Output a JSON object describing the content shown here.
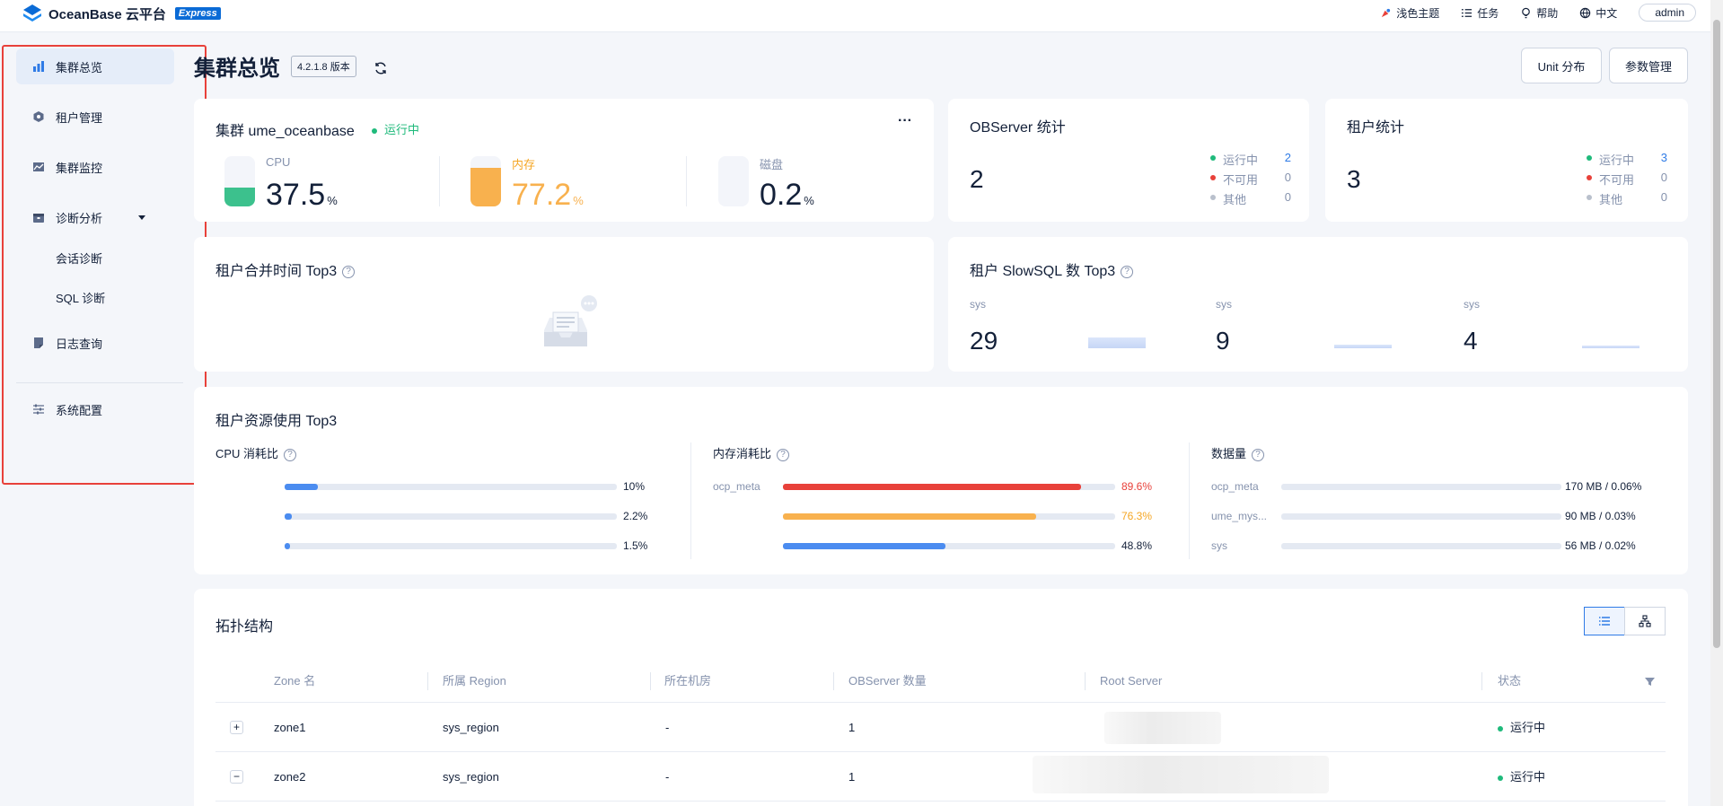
{
  "brand": {
    "name": "OceanBase 云平台",
    "badge": "Express"
  },
  "topbar": {
    "theme": "浅色主题",
    "tasks": "任务",
    "help": "帮助",
    "lang": "中文",
    "user": "admin"
  },
  "sidebar": {
    "items": [
      {
        "label": "集群总览"
      },
      {
        "label": "租户管理"
      },
      {
        "label": "集群监控"
      },
      {
        "label": "诊断分析"
      },
      {
        "label": "会话诊断"
      },
      {
        "label": "SQL 诊断"
      },
      {
        "label": "日志查询"
      },
      {
        "label": "系统配置"
      }
    ]
  },
  "header": {
    "title": "集群总览",
    "version": "4.2.1.8 版本",
    "unit_btn": "Unit 分布",
    "param_btn": "参数管理"
  },
  "cluster": {
    "title": "集群 ume_oceanbase",
    "status": "运行中",
    "more": "···",
    "cpu": {
      "label": "CPU",
      "value": "37.5",
      "unit": "%",
      "level": 0.375
    },
    "mem": {
      "label": "内存",
      "value": "77.2",
      "unit": "%",
      "level": 0.772
    },
    "disk": {
      "label": "磁盘",
      "value": "0.2",
      "unit": "%",
      "level": 0.002
    }
  },
  "observer_stats": {
    "title": "OBServer 统计",
    "total": "2",
    "rows": [
      {
        "label": "运行中",
        "value": "2"
      },
      {
        "label": "不可用",
        "value": "0"
      },
      {
        "label": "其他",
        "value": "0"
      }
    ]
  },
  "tenant_stats": {
    "title": "租户统计",
    "total": "3",
    "rows": [
      {
        "label": "运行中",
        "value": "3"
      },
      {
        "label": "不可用",
        "value": "0"
      },
      {
        "label": "其他",
        "value": "0"
      }
    ]
  },
  "merge_top3": {
    "title": "租户合并时间 Top3",
    "help": "?"
  },
  "slowsql_top3": {
    "title": "租户 SlowSQL 数 Top3",
    "help": "?",
    "items": [
      {
        "tenant": "sys",
        "count": "29"
      },
      {
        "tenant": "sys",
        "count": "9"
      },
      {
        "tenant": "sys",
        "count": "4"
      }
    ]
  },
  "resource_top3": {
    "title": "租户资源使用 Top3",
    "cpu": {
      "title": "CPU 消耗比",
      "help": "?",
      "rows": [
        {
          "name": "",
          "value": "10%",
          "pct": 10
        },
        {
          "name": "",
          "value": "2.2%",
          "pct": 2.2
        },
        {
          "name": "",
          "value": "1.5%",
          "pct": 1.5
        }
      ]
    },
    "mem": {
      "title": "内存消耗比",
      "help": "?",
      "rows": [
        {
          "name": "ocp_meta",
          "value": "89.6%",
          "pct": 89.6
        },
        {
          "name": "",
          "value": "76.3%",
          "pct": 76.3
        },
        {
          "name": "",
          "value": "48.8%",
          "pct": 48.8
        }
      ]
    },
    "data": {
      "title": "数据量",
      "help": "?",
      "rows": [
        {
          "name": "ocp_meta",
          "value": "170 MB / 0.06%",
          "pct": 0
        },
        {
          "name": "ume_mys...",
          "value": "90 MB / 0.03%",
          "pct": 0
        },
        {
          "name": "sys",
          "value": "56 MB / 0.02%",
          "pct": 0
        }
      ]
    }
  },
  "topology": {
    "title": "拓扑结构",
    "columns": [
      "Zone 名",
      "所属 Region",
      "所在机房",
      "OBServer 数量",
      "Root Server",
      "状态"
    ],
    "rows": [
      {
        "expander": "+",
        "zone": "zone1",
        "region": "sys_region",
        "idc": "-",
        "count": "1",
        "status": "运行中"
      },
      {
        "expander": "−",
        "zone": "zone2",
        "region": "sys_region",
        "idc": "-",
        "count": "1",
        "status": "运行中"
      }
    ]
  },
  "colors": {
    "accent": "#2f7be6",
    "green": "#1fba7b",
    "orange": "#f8b14e",
    "red": "#e8413a",
    "gray": "#b9c0cc"
  }
}
